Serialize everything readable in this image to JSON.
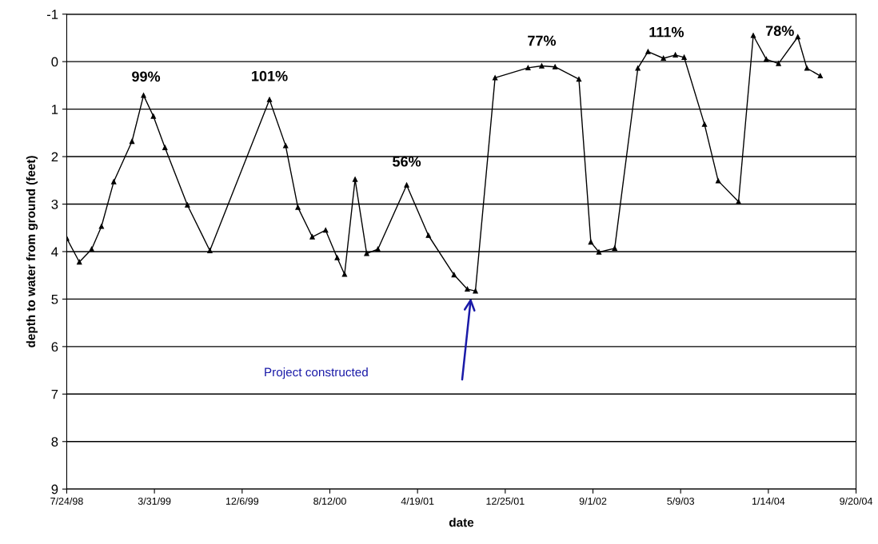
{
  "chart_data": {
    "type": "line",
    "xlabel": "date",
    "ylabel": "depth to water from ground (feet)",
    "x": [
      "1998-07-24",
      "1998-08-29",
      "1998-10-03",
      "1998-10-31",
      "1998-12-05",
      "1999-01-26",
      "1999-02-28",
      "1999-03-28",
      "1999-04-30",
      "1999-07-03",
      "1999-09-05",
      "2000-02-22",
      "2000-04-08",
      "2000-05-13",
      "2000-06-23",
      "2000-07-31",
      "2000-09-02",
      "2000-09-23",
      "2000-10-23",
      "2000-11-25",
      "2000-12-27",
      "2001-03-19",
      "2001-05-20",
      "2001-08-01",
      "2001-09-08",
      "2001-10-01",
      "2001-11-26",
      "2002-02-28",
      "2002-04-08",
      "2002-05-16",
      "2002-07-23",
      "2002-08-26",
      "2002-09-18",
      "2002-11-02",
      "2003-01-07",
      "2003-02-05",
      "2003-03-21",
      "2003-04-24",
      "2003-05-19",
      "2003-07-16",
      "2003-08-24",
      "2003-10-21",
      "2003-12-02",
      "2004-01-08",
      "2004-02-12",
      "2004-04-07",
      "2004-05-03",
      "2004-06-10"
    ],
    "series": [
      {
        "color": "#000000",
        "values": [
          3.72,
          4.22,
          3.95,
          3.47,
          2.53,
          1.68,
          0.71,
          1.15,
          1.81,
          3.02,
          3.98,
          0.8,
          1.77,
          3.07,
          3.69,
          3.55,
          4.13,
          4.48,
          2.48,
          4.04,
          3.95,
          2.6,
          3.66,
          4.49,
          4.79,
          4.83,
          0.34,
          0.13,
          0.09,
          0.11,
          0.37,
          3.8,
          4.01,
          3.93,
          0.14,
          -0.21,
          -0.07,
          -0.14,
          -0.09,
          1.32,
          2.51,
          2.95,
          -0.55,
          -0.05,
          0.04,
          -0.52,
          0.14,
          0.3
        ]
      }
    ],
    "xlim": [
      "1998-07-24",
      "2004-09-20"
    ],
    "xticks": [
      {
        "value": "1998-07-24",
        "label": "7/24/98"
      },
      {
        "value": "1999-03-31",
        "label": "3/31/99"
      },
      {
        "value": "1999-12-06",
        "label": "12/6/99"
      },
      {
        "value": "2000-08-12",
        "label": "8/12/00"
      },
      {
        "value": "2001-04-19",
        "label": "4/19/01"
      },
      {
        "value": "2001-12-25",
        "label": "12/25/01"
      },
      {
        "value": "2002-09-01",
        "label": "9/1/02"
      },
      {
        "value": "2003-05-09",
        "label": "5/9/03"
      },
      {
        "value": "2004-01-14",
        "label": "1/14/04"
      },
      {
        "value": "2004-09-20",
        "label": "9/20/04"
      }
    ],
    "ylim": [
      9,
      -1
    ],
    "yticks": [
      -1,
      0,
      1,
      2,
      3,
      4,
      5,
      6,
      7,
      8,
      9
    ],
    "grid": "y",
    "marker": "triangle",
    "line_style": "solid",
    "annotations": [
      {
        "text": "99%",
        "x": "1999-02-28",
        "y": 0.71
      },
      {
        "text": "101%",
        "x": "2000-02-22",
        "y": 0.8
      },
      {
        "text": "56%",
        "x": "2001-03-19",
        "y": 2.6
      },
      {
        "text": "77%",
        "x": "2002-04-08",
        "y": 0.09
      },
      {
        "text": "111%",
        "x": "2003-02-05",
        "y": -0.21
      },
      {
        "text": "78%",
        "x": "2004-01-08",
        "y": -0.05
      },
      "Project constructed"
    ]
  }
}
